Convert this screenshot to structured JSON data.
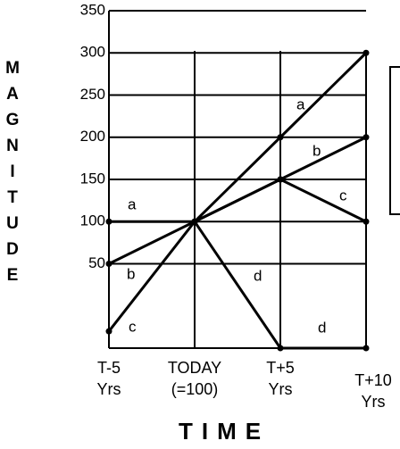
{
  "chart_data": {
    "type": "line",
    "xlabel": "TIME",
    "ylabel": "MAGNITUDE",
    "categories": [
      "T-5\nYrs",
      "TODAY\n(=100)",
      "T+5\nYrs",
      "T+10\nYrs"
    ],
    "series": [
      {
        "name": "a",
        "color": "#000000",
        "values": [
          100,
          100,
          200,
          300
        ]
      },
      {
        "name": "b",
        "color": "#000000",
        "values": [
          50,
          100,
          150,
          200
        ]
      },
      {
        "name": "c",
        "color": "#000000",
        "values": [
          -30,
          100,
          150,
          100
        ]
      },
      {
        "name": "d",
        "color": "#000000",
        "values": [
          null,
          100,
          -50,
          -50
        ]
      }
    ],
    "ylim": [
      -50,
      350
    ],
    "yticks": [
      50,
      100,
      150,
      200,
      250,
      300,
      350
    ],
    "grid": true
  }
}
